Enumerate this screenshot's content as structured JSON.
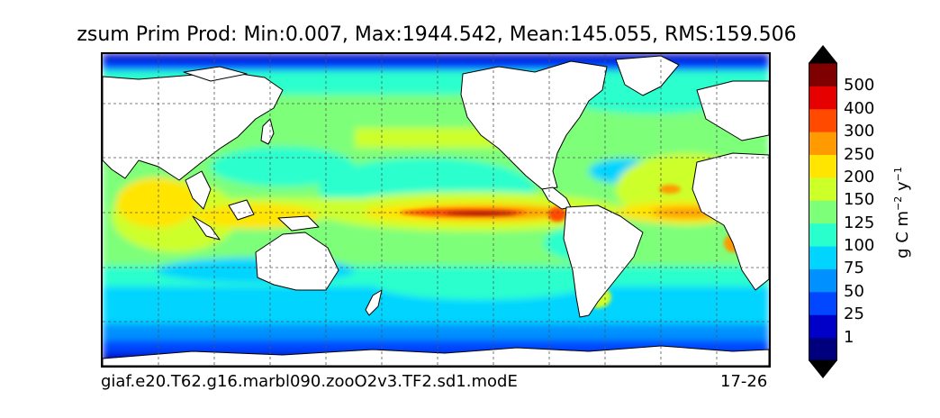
{
  "title": "zsum Prim Prod: Min:0.007, Max:1944.542, Mean:145.055, RMS:159.506",
  "footer": {
    "case_name": "giaf.e20.T62.g16.marbl090.zooO2v3.TF2.sd1.modE",
    "years": "17-26"
  },
  "colorbar": {
    "units_prefix": "g C m",
    "units_exp1": "−2",
    "units_mid": " y",
    "units_exp2": "−1",
    "tick_labels": [
      "1",
      "25",
      "50",
      "75",
      "100",
      "125",
      "150",
      "200",
      "250",
      "300",
      "400",
      "500"
    ],
    "colors": [
      "#00007f",
      "#0000c8",
      "#0047ff",
      "#0090ff",
      "#00d4ff",
      "#29ffcd",
      "#7dff7a",
      "#cdff29",
      "#ffe500",
      "#ff9a00",
      "#ff4a00",
      "#e60000",
      "#7f0000"
    ],
    "under_color": "#000000",
    "over_color": "#000000"
  },
  "map": {
    "land_color": "#ffffff",
    "grid": true,
    "gridline_style": "dashed"
  }
}
